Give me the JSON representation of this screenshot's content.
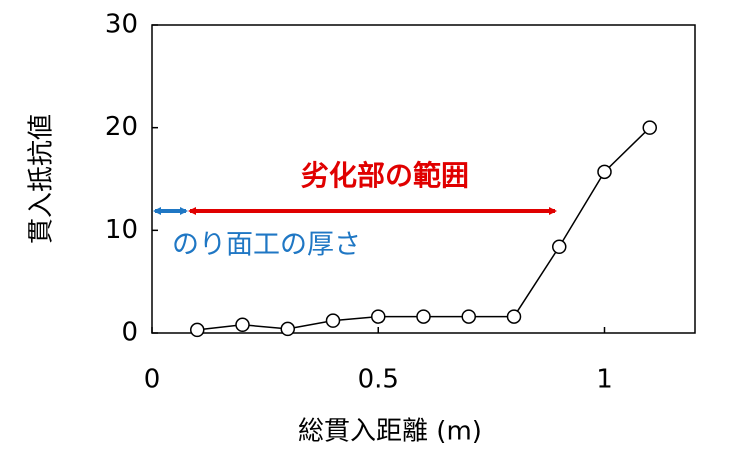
{
  "chart_data": {
    "type": "line",
    "x_label": "総貫入距離 (m)",
    "y_label": "貫入抵抗値",
    "x": [
      0.1,
      0.2,
      0.3,
      0.4,
      0.5,
      0.6,
      0.7,
      0.8,
      0.9,
      1.0,
      1.1
    ],
    "values": [
      0.3,
      0.8,
      0.4,
      1.2,
      1.6,
      1.6,
      1.6,
      1.6,
      8.4,
      15.7,
      20
    ],
    "color": "#000000",
    "xlim": [
      0,
      1.2
    ],
    "xticks": [
      0,
      0.5,
      1
    ],
    "ylim": [
      0,
      30
    ],
    "yticks": [
      0,
      10,
      20,
      30
    ],
    "annotations": [
      "劣化部の範囲",
      "のり面工の厚さ"
    ]
  }
}
